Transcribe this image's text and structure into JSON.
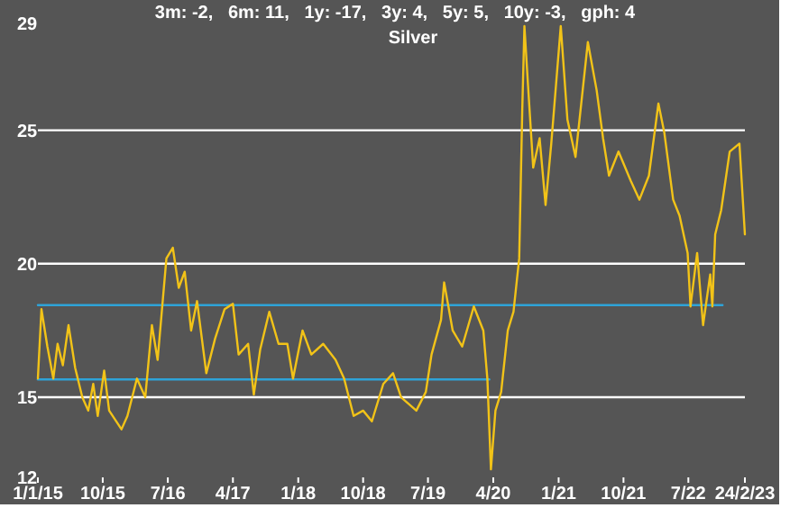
{
  "chart_data": {
    "type": "line",
    "title": "Silver",
    "annotations": [
      "3m: -2,   6m: 11,   1y: -17,   3y: 4,   5y: 5,   10y: -3,   gph: 4"
    ],
    "xlim": [
      "2015-01-01",
      "2023-02-24"
    ],
    "xticks": [
      {
        "value": "2015-01-01",
        "label": "1/1/15"
      },
      {
        "value": "2015-10-01",
        "label": "10/15"
      },
      {
        "value": "2016-07-01",
        "label": "7/16"
      },
      {
        "value": "2017-04-01",
        "label": "4/17"
      },
      {
        "value": "2018-01-01",
        "label": "1/18"
      },
      {
        "value": "2018-10-01",
        "label": "10/18"
      },
      {
        "value": "2019-07-01",
        "label": "7/19"
      },
      {
        "value": "2020-04-01",
        "label": "4/20"
      },
      {
        "value": "2021-01-01",
        "label": "1/21"
      },
      {
        "value": "2021-10-01",
        "label": "10/21"
      },
      {
        "value": "2022-07-01",
        "label": "7/22"
      },
      {
        "value": "2023-02-24",
        "label": "24/2/23"
      }
    ],
    "ylim": [
      12,
      29
    ],
    "yticks": [
      12,
      15,
      20,
      25,
      29
    ],
    "grid": "y",
    "series": [
      {
        "color": "#f2c318",
        "x": [
          "2015-01-01",
          "2015-01-16",
          "2015-02-10",
          "2015-03-07",
          "2015-03-25",
          "2015-04-16",
          "2015-05-10",
          "2015-06-07",
          "2015-07-07",
          "2015-08-01",
          "2015-08-22",
          "2015-09-10",
          "2015-10-07",
          "2015-10-28",
          "2015-12-19",
          "2016-01-13",
          "2016-02-22",
          "2016-03-28",
          "2016-04-25",
          "2016-05-19",
          "2016-06-25",
          "2016-07-22",
          "2016-08-16",
          "2016-09-10",
          "2016-10-07",
          "2016-11-01",
          "2016-12-10",
          "2017-01-16",
          "2017-02-25",
          "2017-04-01",
          "2017-04-25",
          "2017-06-04",
          "2017-06-28",
          "2017-07-25",
          "2017-09-01",
          "2017-10-10",
          "2017-11-16",
          "2017-12-10",
          "2018-01-19",
          "2018-02-25",
          "2018-04-16",
          "2018-06-07",
          "2018-07-13",
          "2018-08-22",
          "2018-10-01",
          "2018-11-07",
          "2018-12-25",
          "2019-02-04",
          "2019-03-10",
          "2019-05-13",
          "2019-06-22",
          "2019-07-16",
          "2019-08-25",
          "2019-09-07",
          "2019-10-13",
          "2019-11-22",
          "2020-01-10",
          "2020-02-19",
          "2020-03-07",
          "2020-03-22",
          "2020-04-10",
          "2020-05-04",
          "2020-06-01",
          "2020-06-25",
          "2020-07-19",
          "2020-08-01",
          "2020-08-10",
          "2020-08-25",
          "2020-09-16",
          "2020-10-13",
          "2020-11-07",
          "2020-12-01",
          "2021-01-10",
          "2021-02-07",
          "2021-03-13",
          "2021-05-04",
          "2021-06-10",
          "2021-07-07",
          "2021-08-01",
          "2021-09-10",
          "2021-11-01",
          "2021-12-07",
          "2022-01-16",
          "2022-02-25",
          "2022-03-22",
          "2022-04-28",
          "2022-05-25",
          "2022-06-28",
          "2022-07-10",
          "2022-08-07",
          "2022-09-01",
          "2022-10-01",
          "2022-10-10",
          "2022-10-22",
          "2022-11-16",
          "2022-12-22",
          "2023-02-01",
          "2023-02-24"
        ],
        "values": [
          15.7,
          18.3,
          16.9,
          15.7,
          17.0,
          16.2,
          17.7,
          16.1,
          15.0,
          14.5,
          15.5,
          14.3,
          16.0,
          14.5,
          13.8,
          14.3,
          15.7,
          15.0,
          17.7,
          16.4,
          20.2,
          20.6,
          19.1,
          19.7,
          17.5,
          18.6,
          15.9,
          17.2,
          18.3,
          18.5,
          16.6,
          17.0,
          15.1,
          16.8,
          18.2,
          17.0,
          17.0,
          15.7,
          17.5,
          16.6,
          17.0,
          16.4,
          15.7,
          14.3,
          14.5,
          14.1,
          15.5,
          15.9,
          15.0,
          14.5,
          15.2,
          16.6,
          17.9,
          19.3,
          17.5,
          16.9,
          18.4,
          17.5,
          15.7,
          12.3,
          14.5,
          15.2,
          17.5,
          18.2,
          20.2,
          25.8,
          28.9,
          26.7,
          23.6,
          24.7,
          22.2,
          24.5,
          28.9,
          25.4,
          24.0,
          28.3,
          26.5,
          24.7,
          23.3,
          24.2,
          23.1,
          22.4,
          23.3,
          26.0,
          24.9,
          22.4,
          21.8,
          20.4,
          18.4,
          20.4,
          17.7,
          19.6,
          18.4,
          21.1,
          22.0,
          24.2,
          24.5,
          21.1
        ]
      },
      {
        "color": "#2ea3d8",
        "x": [
          "2015-01-01",
          "2022-11-22"
        ],
        "values": [
          18.45,
          18.45
        ]
      },
      {
        "color": "#2ea3d8",
        "x": [
          "2015-01-01",
          "2020-03-15"
        ],
        "values": [
          15.67,
          15.67
        ]
      }
    ]
  }
}
